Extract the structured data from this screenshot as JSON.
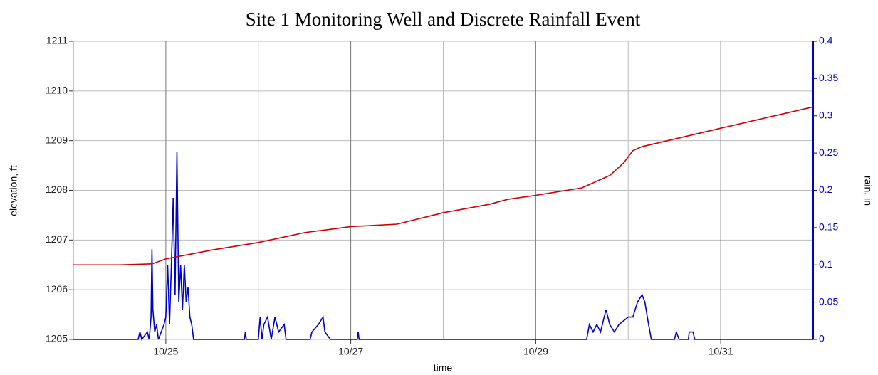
{
  "chart_data": {
    "type": "line",
    "title": "Site 1 Monitoring Well and Discrete Rainfall Event",
    "x_label": "time",
    "y_label": "elevation, ft",
    "y2_label": "rain, in",
    "xlim": [
      24,
      32
    ],
    "xticks": [
      {
        "value": 25,
        "label": "10/25"
      },
      {
        "value": 27,
        "label": "10/27"
      },
      {
        "value": 29,
        "label": "10/29"
      },
      {
        "value": 31,
        "label": "10/31"
      }
    ],
    "xgrid": [
      25,
      26,
      27,
      28,
      29,
      30,
      31
    ],
    "ylim": [
      1205,
      1211
    ],
    "yticks": [
      1205,
      1206,
      1207,
      1208,
      1209,
      1210,
      1211
    ],
    "y2lim": [
      0,
      0.4
    ],
    "y2ticks": [
      0,
      0.05,
      0.1,
      0.15,
      0.2,
      0.25,
      0.3,
      0.35,
      0.4
    ],
    "grid": true,
    "series": [
      {
        "name": "elevation",
        "color": "#cc0000",
        "x": [
          24.0,
          24.5,
          24.85,
          25.0,
          25.5,
          26.0,
          26.5,
          26.8,
          27.0,
          27.5,
          28.0,
          28.5,
          28.7,
          29.0,
          29.5,
          29.8,
          29.95,
          30.05,
          30.15,
          31.0,
          32.0
        ],
        "values": [
          1206.5,
          1206.5,
          1206.52,
          1206.62,
          1206.8,
          1206.95,
          1207.15,
          1207.22,
          1207.27,
          1207.32,
          1207.55,
          1207.72,
          1207.82,
          1207.9,
          1208.05,
          1208.3,
          1208.55,
          1208.8,
          1208.88,
          1209.25,
          1209.68
        ]
      },
      {
        "name": "rain",
        "color": "#0000cc",
        "axis": "y2",
        "x": [
          24.0,
          24.7,
          24.72,
          24.74,
          24.8,
          24.82,
          24.84,
          24.85,
          24.86,
          24.88,
          24.9,
          24.92,
          24.98,
          25.0,
          25.02,
          25.04,
          25.06,
          25.08,
          25.1,
          25.12,
          25.14,
          25.16,
          25.18,
          25.2,
          25.22,
          25.24,
          25.26,
          25.28,
          25.3,
          25.85,
          25.86,
          25.87,
          26.0,
          26.02,
          26.04,
          26.06,
          26.1,
          26.14,
          26.18,
          26.22,
          26.28,
          26.3,
          26.56,
          26.58,
          26.65,
          26.7,
          26.72,
          26.78,
          27.07,
          27.08,
          27.09,
          29.55,
          29.58,
          29.62,
          29.66,
          29.7,
          29.76,
          29.8,
          29.85,
          29.9,
          30.0,
          30.05,
          30.1,
          30.15,
          30.18,
          30.22,
          30.25,
          30.5,
          30.52,
          30.55,
          30.65,
          30.66,
          30.7,
          30.72,
          32.0
        ],
        "values": [
          0,
          0,
          0.01,
          0,
          0.01,
          0,
          0.03,
          0.121,
          0.04,
          0.01,
          0.02,
          0,
          0.02,
          0.03,
          0.1,
          0.02,
          0.1,
          0.19,
          0.06,
          0.252,
          0.05,
          0.1,
          0.04,
          0.1,
          0.05,
          0.07,
          0.03,
          0.02,
          0,
          0,
          0.01,
          0,
          0,
          0.03,
          0,
          0.02,
          0.03,
          0,
          0.03,
          0.01,
          0.02,
          0,
          0,
          0.01,
          0.02,
          0.03,
          0.01,
          0,
          0,
          0.01,
          0,
          0,
          0.02,
          0.01,
          0.02,
          0.01,
          0.04,
          0.02,
          0.01,
          0.02,
          0.03,
          0.03,
          0.05,
          0.06,
          0.05,
          0.02,
          0,
          0,
          0.01,
          0,
          0,
          0.01,
          0.01,
          0,
          0
        ]
      }
    ]
  }
}
